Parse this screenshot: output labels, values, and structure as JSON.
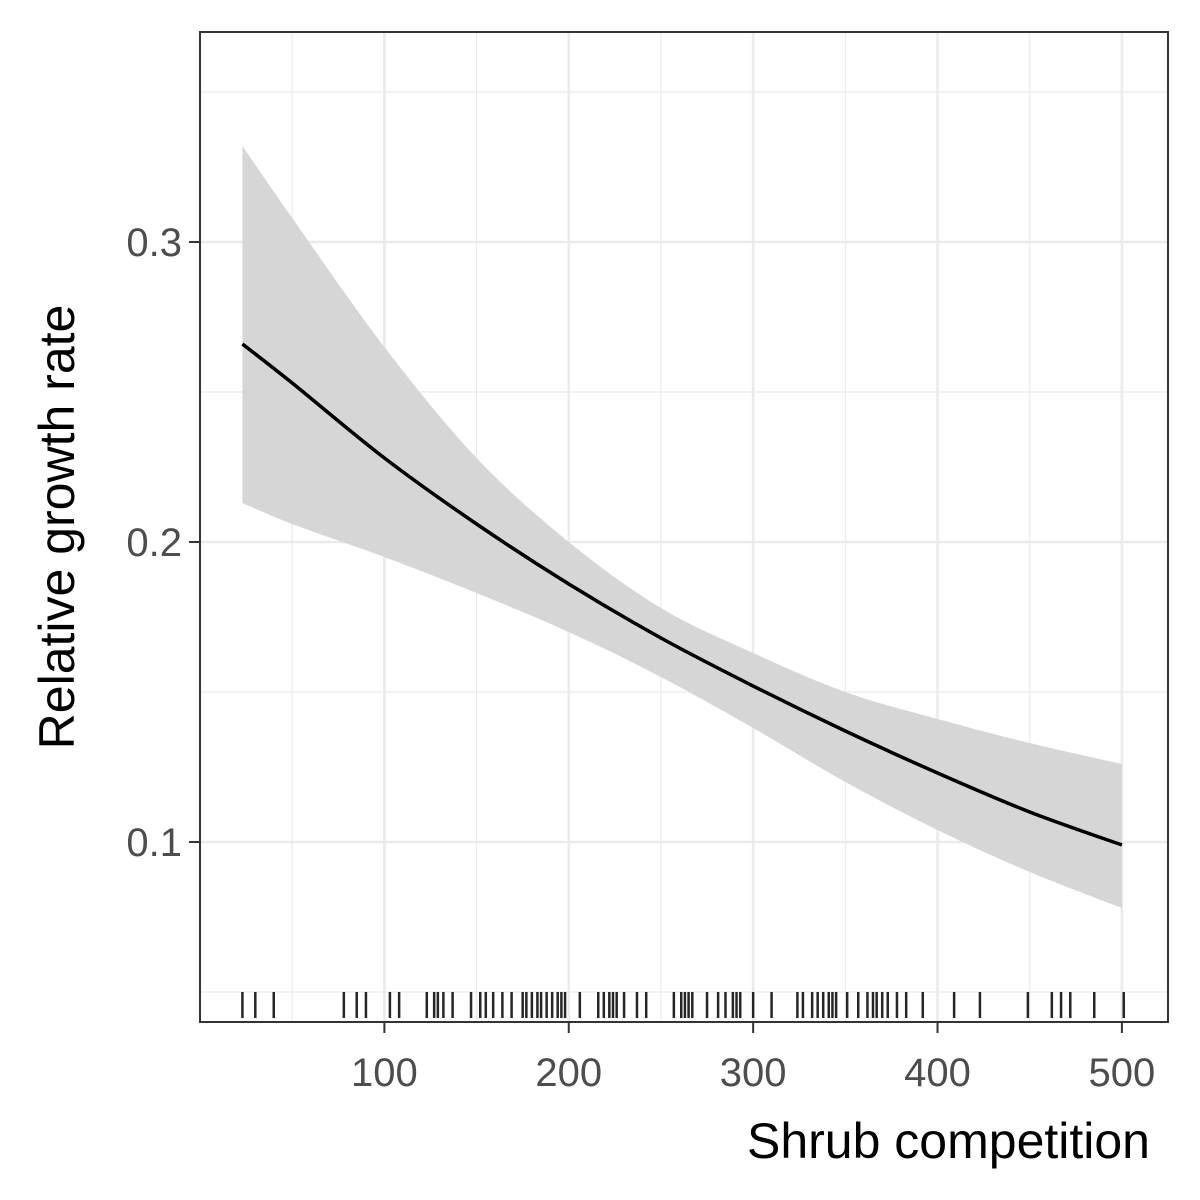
{
  "chart_data": {
    "type": "line",
    "title": "",
    "xlabel": "Shrub competition",
    "ylabel": "Relative growth rate",
    "xlim": [
      0,
      525
    ],
    "ylim": [
      0.04,
      0.37
    ],
    "x_ticks": [
      100,
      200,
      300,
      400,
      500
    ],
    "x_tick_labels": [
      "100",
      "200",
      "300",
      "400",
      "500"
    ],
    "y_ticks": [
      0.1,
      0.2,
      0.3
    ],
    "y_tick_labels": [
      "0.1",
      "0.2",
      "0.3"
    ],
    "grid": true,
    "legend": "none",
    "colors": {
      "line": "#000000",
      "ribbon": "#d6d6d6",
      "grid": "#ebebeb",
      "panel_border": "#333333"
    },
    "series": [
      {
        "x": [
          23,
          50,
          100,
          150,
          200,
          250,
          300,
          350,
          400,
          450,
          500
        ],
        "y": [
          0.266,
          0.253,
          0.228,
          0.206,
          0.186,
          0.168,
          0.152,
          0.137,
          0.123,
          0.11,
          0.099
        ],
        "lower": [
          0.213,
          0.206,
          0.195,
          0.183,
          0.17,
          0.155,
          0.138,
          0.12,
          0.104,
          0.09,
          0.078
        ],
        "upper": [
          0.332,
          0.308,
          0.265,
          0.228,
          0.2,
          0.178,
          0.163,
          0.15,
          0.141,
          0.133,
          0.126
        ]
      }
    ],
    "rug_x": [
      23,
      30,
      40,
      78,
      85,
      90,
      103,
      108,
      123,
      127,
      129,
      132,
      137,
      147,
      152,
      155,
      159,
      164,
      169,
      175,
      177,
      180,
      183,
      185,
      188,
      191,
      194,
      196,
      198,
      206,
      216,
      219,
      222,
      224,
      226,
      230,
      237,
      242,
      257,
      261,
      263,
      265,
      267,
      275,
      281,
      285,
      289,
      291,
      293,
      300,
      310,
      324,
      327,
      332,
      335,
      338,
      341,
      343,
      345,
      351,
      357,
      362,
      365,
      367,
      370,
      373,
      378,
      383,
      392,
      409,
      423,
      449,
      462,
      467,
      472,
      485,
      501
    ]
  }
}
